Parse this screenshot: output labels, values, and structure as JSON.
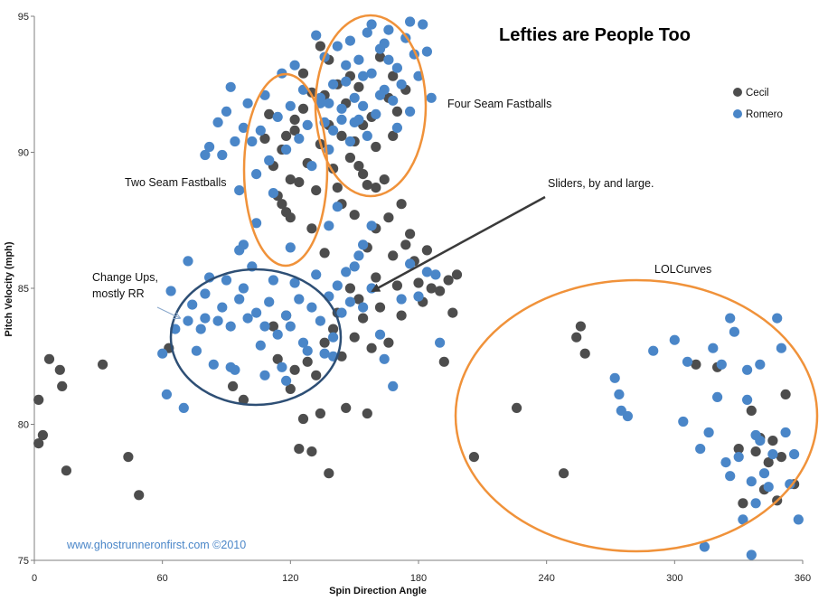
{
  "chart_data": {
    "type": "scatter",
    "title": "Lefties are People Too",
    "xlabel": "Spin Direction Angle",
    "ylabel": "Pitch Velocity (mph)",
    "xlim": [
      0,
      360
    ],
    "ylim": [
      75,
      95
    ],
    "xticks": [
      0,
      60,
      120,
      180,
      240,
      300,
      360
    ],
    "yticks": [
      75,
      80,
      85,
      90,
      95
    ],
    "grid": false,
    "legend_position": "top-right",
    "colors": {
      "Cecil": "#4d4d4d",
      "Romero": "#4a86c8",
      "ellipse_orange": "#f0923a",
      "ellipse_blue": "#2e4f75",
      "arrow": "#3a3a3a"
    },
    "series": [
      {
        "name": "Cecil",
        "color": "#4d4d4d",
        "points": [
          [
            2,
            79.3
          ],
          [
            2,
            80.9
          ],
          [
            4,
            79.6
          ],
          [
            7,
            82.4
          ],
          [
            12,
            82.0
          ],
          [
            13,
            81.4
          ],
          [
            15,
            78.3
          ],
          [
            32,
            82.2
          ],
          [
            44,
            78.8
          ],
          [
            49,
            77.4
          ],
          [
            63,
            82.8
          ],
          [
            93,
            81.4
          ],
          [
            98,
            80.9
          ],
          [
            112,
            83.6
          ],
          [
            114,
            82.4
          ],
          [
            118,
            84.0
          ],
          [
            120,
            81.3
          ],
          [
            122,
            82.0
          ],
          [
            124,
            79.1
          ],
          [
            126,
            80.2
          ],
          [
            128,
            82.3
          ],
          [
            130,
            79.0
          ],
          [
            132,
            81.8
          ],
          [
            134,
            80.4
          ],
          [
            136,
            83.0
          ],
          [
            138,
            78.2
          ],
          [
            140,
            83.5
          ],
          [
            142,
            84.1
          ],
          [
            144,
            82.5
          ],
          [
            146,
            80.6
          ],
          [
            148,
            85.0
          ],
          [
            150,
            83.2
          ],
          [
            152,
            84.6
          ],
          [
            154,
            83.9
          ],
          [
            156,
            80.4
          ],
          [
            158,
            82.8
          ],
          [
            160,
            85.4
          ],
          [
            162,
            84.3
          ],
          [
            166,
            83.0
          ],
          [
            168,
            86.2
          ],
          [
            170,
            85.1
          ],
          [
            172,
            84.0
          ],
          [
            174,
            86.6
          ],
          [
            176,
            87.0
          ],
          [
            178,
            86.0
          ],
          [
            180,
            85.2
          ],
          [
            182,
            84.5
          ],
          [
            184,
            86.4
          ],
          [
            186,
            85.0
          ],
          [
            190,
            84.9
          ],
          [
            192,
            82.3
          ],
          [
            194,
            85.3
          ],
          [
            196,
            84.1
          ],
          [
            198,
            85.5
          ],
          [
            156,
            86.5
          ],
          [
            160,
            87.2
          ],
          [
            166,
            87.6
          ],
          [
            172,
            88.1
          ],
          [
            112,
            89.5
          ],
          [
            114,
            88.4
          ],
          [
            116,
            90.1
          ],
          [
            118,
            87.8
          ],
          [
            120,
            89.0
          ],
          [
            122,
            90.8
          ],
          [
            124,
            88.9
          ],
          [
            126,
            91.6
          ],
          [
            128,
            89.6
          ],
          [
            130,
            87.2
          ],
          [
            132,
            88.6
          ],
          [
            134,
            90.3
          ],
          [
            136,
            92.1
          ],
          [
            138,
            91.0
          ],
          [
            140,
            89.4
          ],
          [
            142,
            88.7
          ],
          [
            144,
            90.6
          ],
          [
            146,
            91.8
          ],
          [
            148,
            89.8
          ],
          [
            150,
            90.4
          ],
          [
            152,
            92.4
          ],
          [
            154,
            89.2
          ],
          [
            156,
            88.8
          ],
          [
            158,
            91.3
          ],
          [
            160,
            90.2
          ],
          [
            162,
            93.5
          ],
          [
            164,
            89.0
          ],
          [
            166,
            92.0
          ],
          [
            168,
            90.6
          ],
          [
            170,
            91.5
          ],
          [
            134,
            93.9
          ],
          [
            130,
            92.2
          ],
          [
            126,
            92.9
          ],
          [
            122,
            91.2
          ],
          [
            118,
            90.6
          ],
          [
            116,
            88.1
          ],
          [
            110,
            91.4
          ],
          [
            108,
            90.5
          ],
          [
            120,
            87.6
          ],
          [
            136,
            86.3
          ],
          [
            144,
            88.1
          ],
          [
            150,
            87.7
          ],
          [
            152,
            89.5
          ],
          [
            148,
            92.8
          ],
          [
            142,
            92.5
          ],
          [
            138,
            93.4
          ],
          [
            160,
            88.7
          ],
          [
            168,
            92.8
          ],
          [
            174,
            92.3
          ],
          [
            154,
            91.0
          ],
          [
            226,
            80.6
          ],
          [
            206,
            78.8
          ],
          [
            248,
            78.2
          ],
          [
            254,
            83.2
          ],
          [
            256,
            83.6
          ],
          [
            258,
            82.6
          ],
          [
            310,
            82.2
          ],
          [
            320,
            82.1
          ],
          [
            330,
            79.1
          ],
          [
            332,
            77.1
          ],
          [
            336,
            80.5
          ],
          [
            338,
            79.0
          ],
          [
            340,
            79.5
          ],
          [
            342,
            77.6
          ],
          [
            344,
            78.6
          ],
          [
            346,
            79.4
          ],
          [
            348,
            77.2
          ],
          [
            350,
            78.8
          ],
          [
            352,
            81.1
          ],
          [
            356,
            77.8
          ]
        ]
      },
      {
        "name": "Romero",
        "color": "#4a86c8",
        "points": [
          [
            60,
            82.6
          ],
          [
            62,
            81.1
          ],
          [
            66,
            83.5
          ],
          [
            70,
            80.6
          ],
          [
            72,
            83.8
          ],
          [
            74,
            84.4
          ],
          [
            76,
            82.7
          ],
          [
            78,
            83.5
          ],
          [
            80,
            84.8
          ],
          [
            82,
            85.4
          ],
          [
            84,
            82.2
          ],
          [
            86,
            83.8
          ],
          [
            88,
            84.3
          ],
          [
            90,
            85.3
          ],
          [
            92,
            83.6
          ],
          [
            94,
            82.0
          ],
          [
            96,
            84.6
          ],
          [
            98,
            85.0
          ],
          [
            100,
            83.9
          ],
          [
            102,
            85.8
          ],
          [
            104,
            84.1
          ],
          [
            106,
            82.9
          ],
          [
            108,
            83.6
          ],
          [
            110,
            84.5
          ],
          [
            112,
            85.3
          ],
          [
            114,
            83.3
          ],
          [
            116,
            82.1
          ],
          [
            118,
            84.0
          ],
          [
            120,
            83.6
          ],
          [
            122,
            85.2
          ],
          [
            124,
            84.6
          ],
          [
            126,
            83.0
          ],
          [
            128,
            82.7
          ],
          [
            130,
            84.3
          ],
          [
            132,
            85.5
          ],
          [
            134,
            83.8
          ],
          [
            136,
            82.6
          ],
          [
            138,
            84.7
          ],
          [
            140,
            83.2
          ],
          [
            142,
            85.1
          ],
          [
            144,
            84.1
          ],
          [
            146,
            85.6
          ],
          [
            148,
            84.5
          ],
          [
            150,
            85.8
          ],
          [
            152,
            86.2
          ],
          [
            154,
            84.3
          ],
          [
            158,
            85.0
          ],
          [
            162,
            83.3
          ],
          [
            164,
            82.4
          ],
          [
            168,
            81.4
          ],
          [
            172,
            84.6
          ],
          [
            176,
            85.9
          ],
          [
            180,
            84.7
          ],
          [
            184,
            85.6
          ],
          [
            188,
            85.5
          ],
          [
            190,
            83.0
          ],
          [
            64,
            84.9
          ],
          [
            80,
            83.9
          ],
          [
            92,
            82.1
          ],
          [
            108,
            81.8
          ],
          [
            72,
            86.0
          ],
          [
            96,
            86.4
          ],
          [
            118,
            81.6
          ],
          [
            140,
            82.5
          ],
          [
            154,
            86.6
          ],
          [
            138,
            87.3
          ],
          [
            142,
            88.0
          ],
          [
            158,
            87.3
          ],
          [
            80,
            89.9
          ],
          [
            82,
            90.2
          ],
          [
            86,
            91.1
          ],
          [
            88,
            89.9
          ],
          [
            90,
            91.5
          ],
          [
            92,
            92.4
          ],
          [
            94,
            90.4
          ],
          [
            96,
            88.6
          ],
          [
            98,
            90.9
          ],
          [
            100,
            91.8
          ],
          [
            102,
            90.4
          ],
          [
            104,
            89.2
          ],
          [
            106,
            90.8
          ],
          [
            108,
            92.1
          ],
          [
            110,
            89.7
          ],
          [
            112,
            88.5
          ],
          [
            114,
            91.3
          ],
          [
            116,
            92.9
          ],
          [
            118,
            90.1
          ],
          [
            120,
            91.7
          ],
          [
            122,
            93.2
          ],
          [
            124,
            90.5
          ],
          [
            126,
            92.3
          ],
          [
            128,
            91.0
          ],
          [
            130,
            89.5
          ],
          [
            134,
            91.8
          ],
          [
            138,
            90.1
          ],
          [
            98,
            86.6
          ],
          [
            104,
            87.4
          ],
          [
            120,
            86.5
          ],
          [
            132,
            94.3
          ],
          [
            134,
            92.0
          ],
          [
            136,
            93.5
          ],
          [
            138,
            91.8
          ],
          [
            140,
            92.5
          ],
          [
            142,
            93.9
          ],
          [
            144,
            91.2
          ],
          [
            146,
            92.6
          ],
          [
            148,
            94.1
          ],
          [
            150,
            92.0
          ],
          [
            152,
            93.4
          ],
          [
            154,
            91.7
          ],
          [
            156,
            94.4
          ],
          [
            158,
            92.9
          ],
          [
            160,
            91.4
          ],
          [
            162,
            93.8
          ],
          [
            164,
            92.3
          ],
          [
            166,
            94.5
          ],
          [
            168,
            91.9
          ],
          [
            170,
            93.1
          ],
          [
            172,
            92.5
          ],
          [
            174,
            94.2
          ],
          [
            176,
            91.5
          ],
          [
            178,
            93.6
          ],
          [
            180,
            92.8
          ],
          [
            182,
            94.7
          ],
          [
            184,
            93.7
          ],
          [
            186,
            92.0
          ],
          [
            146,
            93.2
          ],
          [
            150,
            91.1
          ],
          [
            154,
            92.8
          ],
          [
            158,
            94.7
          ],
          [
            162,
            92.1
          ],
          [
            166,
            93.4
          ],
          [
            170,
            90.9
          ],
          [
            140,
            90.8
          ],
          [
            144,
            91.6
          ],
          [
            148,
            90.4
          ],
          [
            152,
            91.2
          ],
          [
            156,
            90.6
          ],
          [
            176,
            94.8
          ],
          [
            164,
            94.0
          ],
          [
            136,
            91.1
          ],
          [
            272,
            81.7
          ],
          [
            274,
            81.1
          ],
          [
            275,
            80.5
          ],
          [
            278,
            80.3
          ],
          [
            290,
            82.7
          ],
          [
            300,
            83.1
          ],
          [
            304,
            80.1
          ],
          [
            306,
            82.3
          ],
          [
            312,
            79.1
          ],
          [
            314,
            75.5
          ],
          [
            316,
            79.7
          ],
          [
            318,
            82.8
          ],
          [
            320,
            81.0
          ],
          [
            322,
            82.2
          ],
          [
            324,
            78.6
          ],
          [
            326,
            83.9
          ],
          [
            328,
            83.4
          ],
          [
            330,
            78.8
          ],
          [
            332,
            76.5
          ],
          [
            334,
            80.9
          ],
          [
            336,
            77.9
          ],
          [
            338,
            79.6
          ],
          [
            340,
            79.4
          ],
          [
            342,
            78.2
          ],
          [
            344,
            77.7
          ],
          [
            346,
            78.9
          ],
          [
            348,
            83.9
          ],
          [
            350,
            82.8
          ],
          [
            352,
            79.7
          ],
          [
            354,
            77.8
          ],
          [
            356,
            78.9
          ],
          [
            358,
            76.5
          ],
          [
            336,
            75.2
          ],
          [
            338,
            77.1
          ],
          [
            340,
            82.2
          ],
          [
            334,
            82.0
          ],
          [
            326,
            78.1
          ]
        ]
      }
    ],
    "annotations": [
      "Two Seam Fastballs",
      "Four Seam Fastballs",
      "Sliders, by and large.",
      "Change Ups,",
      "mostly RR",
      "LOLCurves"
    ],
    "footer": "www.ghostrunneronfirst.com ©2010"
  }
}
